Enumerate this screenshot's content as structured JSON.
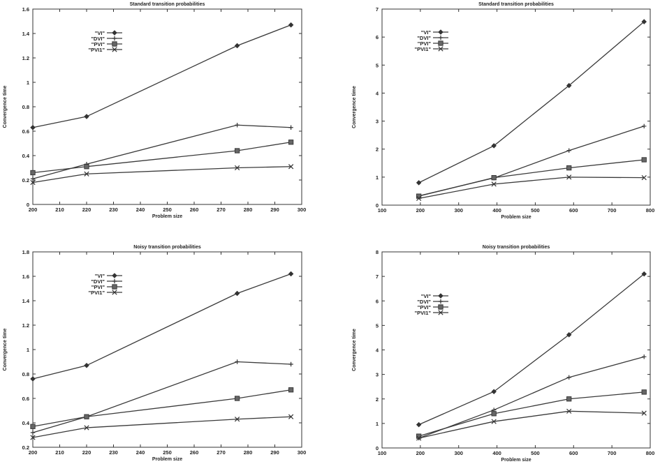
{
  "chart_data": [
    {
      "type": "line",
      "title": "Standard transition probabilities",
      "xlabel": "Problem size",
      "ylabel": "Convergence time",
      "xlim": [
        200,
        300
      ],
      "ylim": [
        0,
        1.6
      ],
      "xticks": [
        200,
        210,
        220,
        230,
        240,
        250,
        260,
        270,
        280,
        290,
        300
      ],
      "xtick_labels": [
        "200",
        "210",
        "220",
        "230",
        "240",
        "250",
        "260",
        "270",
        "280",
        "290",
        "300"
      ],
      "yticks": [
        0,
        0.2,
        0.4,
        0.6,
        0.8,
        1,
        1.2,
        1.4,
        1.6
      ],
      "ytick_labels": [
        "0",
        "0.2",
        "0.4",
        "0.6",
        "0.8",
        "1",
        "1.2",
        "1.4",
        "1.6"
      ],
      "legend_position": "top-left",
      "grid": false,
      "x": [
        200,
        220,
        276,
        296
      ],
      "series": [
        {
          "name": "\"VI\"",
          "marker": "diamond",
          "values": [
            0.63,
            0.72,
            1.3,
            1.47
          ]
        },
        {
          "name": "\"DVI\"",
          "marker": "plus",
          "values": [
            0.21,
            0.33,
            0.65,
            0.63
          ]
        },
        {
          "name": "\"PVI\"",
          "marker": "square",
          "values": [
            0.26,
            0.31,
            0.44,
            0.51
          ]
        },
        {
          "name": "\"PVI1\"",
          "marker": "cross",
          "values": [
            0.18,
            0.25,
            0.3,
            0.31
          ]
        }
      ]
    },
    {
      "type": "line",
      "title": "Standard transition probabilities",
      "xlabel": "Problem size",
      "ylabel": "Convergence time",
      "xlim": [
        100,
        800
      ],
      "ylim": [
        0,
        7
      ],
      "xticks": [
        100,
        200,
        300,
        400,
        500,
        600,
        700,
        800
      ],
      "xtick_labels": [
        "100",
        "200",
        "300",
        "400",
        "500",
        "600",
        "700",
        "800"
      ],
      "yticks": [
        0,
        1,
        2,
        3,
        4,
        5,
        6,
        7
      ],
      "ytick_labels": [
        "0",
        "1",
        "2",
        "3",
        "4",
        "5",
        "6",
        "7"
      ],
      "legend_position": "top-left",
      "grid": false,
      "x": [
        196,
        392,
        588,
        784
      ],
      "series": [
        {
          "name": "\"VI\"",
          "marker": "diamond",
          "values": [
            0.8,
            2.12,
            4.27,
            6.55
          ]
        },
        {
          "name": "\"DVI\"",
          "marker": "plus",
          "values": [
            0.33,
            0.97,
            1.95,
            2.82
          ]
        },
        {
          "name": "\"PVI\"",
          "marker": "square",
          "values": [
            0.32,
            0.98,
            1.33,
            1.62
          ]
        },
        {
          "name": "\"PVI1\"",
          "marker": "cross",
          "values": [
            0.24,
            0.75,
            1.0,
            0.98
          ]
        }
      ]
    },
    {
      "type": "line",
      "title": "Noisy transition probabilities",
      "xlabel": "Problem size",
      "ylabel": "Convergence time",
      "xlim": [
        200,
        300
      ],
      "ylim": [
        0.2,
        1.8
      ],
      "xticks": [
        200,
        210,
        220,
        230,
        240,
        250,
        260,
        270,
        280,
        290,
        300
      ],
      "xtick_labels": [
        "200",
        "210",
        "220",
        "230",
        "240",
        "250",
        "260",
        "270",
        "280",
        "290",
        "300"
      ],
      "yticks": [
        0.2,
        0.4,
        0.6,
        0.8,
        1,
        1.2,
        1.4,
        1.6,
        1.8
      ],
      "ytick_labels": [
        "0.2",
        "0.4",
        "0.6",
        "0.8",
        "1",
        "1.2",
        "1.4",
        "1.6",
        "1.8"
      ],
      "legend_position": "top-left",
      "grid": false,
      "x": [
        200,
        220,
        276,
        296
      ],
      "series": [
        {
          "name": "\"VI\"",
          "marker": "diamond",
          "values": [
            0.76,
            0.87,
            1.46,
            1.62
          ]
        },
        {
          "name": "\"DVI\"",
          "marker": "plus",
          "values": [
            0.32,
            0.45,
            0.9,
            0.88
          ]
        },
        {
          "name": "\"PVI\"",
          "marker": "square",
          "values": [
            0.37,
            0.45,
            0.6,
            0.67
          ]
        },
        {
          "name": "\"PVI1\"",
          "marker": "cross",
          "values": [
            0.28,
            0.36,
            0.43,
            0.45
          ]
        }
      ]
    },
    {
      "type": "line",
      "title": "Noisy transition probabilities",
      "xlabel": "Problem size",
      "ylabel": "Convergence time",
      "xlim": [
        100,
        800
      ],
      "ylim": [
        0,
        8
      ],
      "xticks": [
        100,
        200,
        300,
        400,
        500,
        600,
        700,
        800
      ],
      "xtick_labels": [
        "100",
        "200",
        "300",
        "400",
        "500",
        "600",
        "700",
        "800"
      ],
      "yticks": [
        0,
        1,
        2,
        3,
        4,
        5,
        6,
        7,
        8
      ],
      "ytick_labels": [
        "0",
        "1",
        "2",
        "3",
        "4",
        "5",
        "6",
        "7",
        "8"
      ],
      "legend_position": "top-left",
      "grid": false,
      "x": [
        196,
        392,
        588,
        784
      ],
      "series": [
        {
          "name": "\"VI\"",
          "marker": "diamond",
          "values": [
            0.95,
            2.3,
            4.62,
            7.1
          ]
        },
        {
          "name": "\"DVI\"",
          "marker": "plus",
          "values": [
            0.4,
            1.55,
            2.88,
            3.72
          ]
        },
        {
          "name": "\"PVI\"",
          "marker": "square",
          "values": [
            0.48,
            1.4,
            2.0,
            2.28
          ]
        },
        {
          "name": "\"PVI1\"",
          "marker": "cross",
          "values": [
            0.4,
            1.08,
            1.5,
            1.42
          ]
        }
      ]
    }
  ]
}
